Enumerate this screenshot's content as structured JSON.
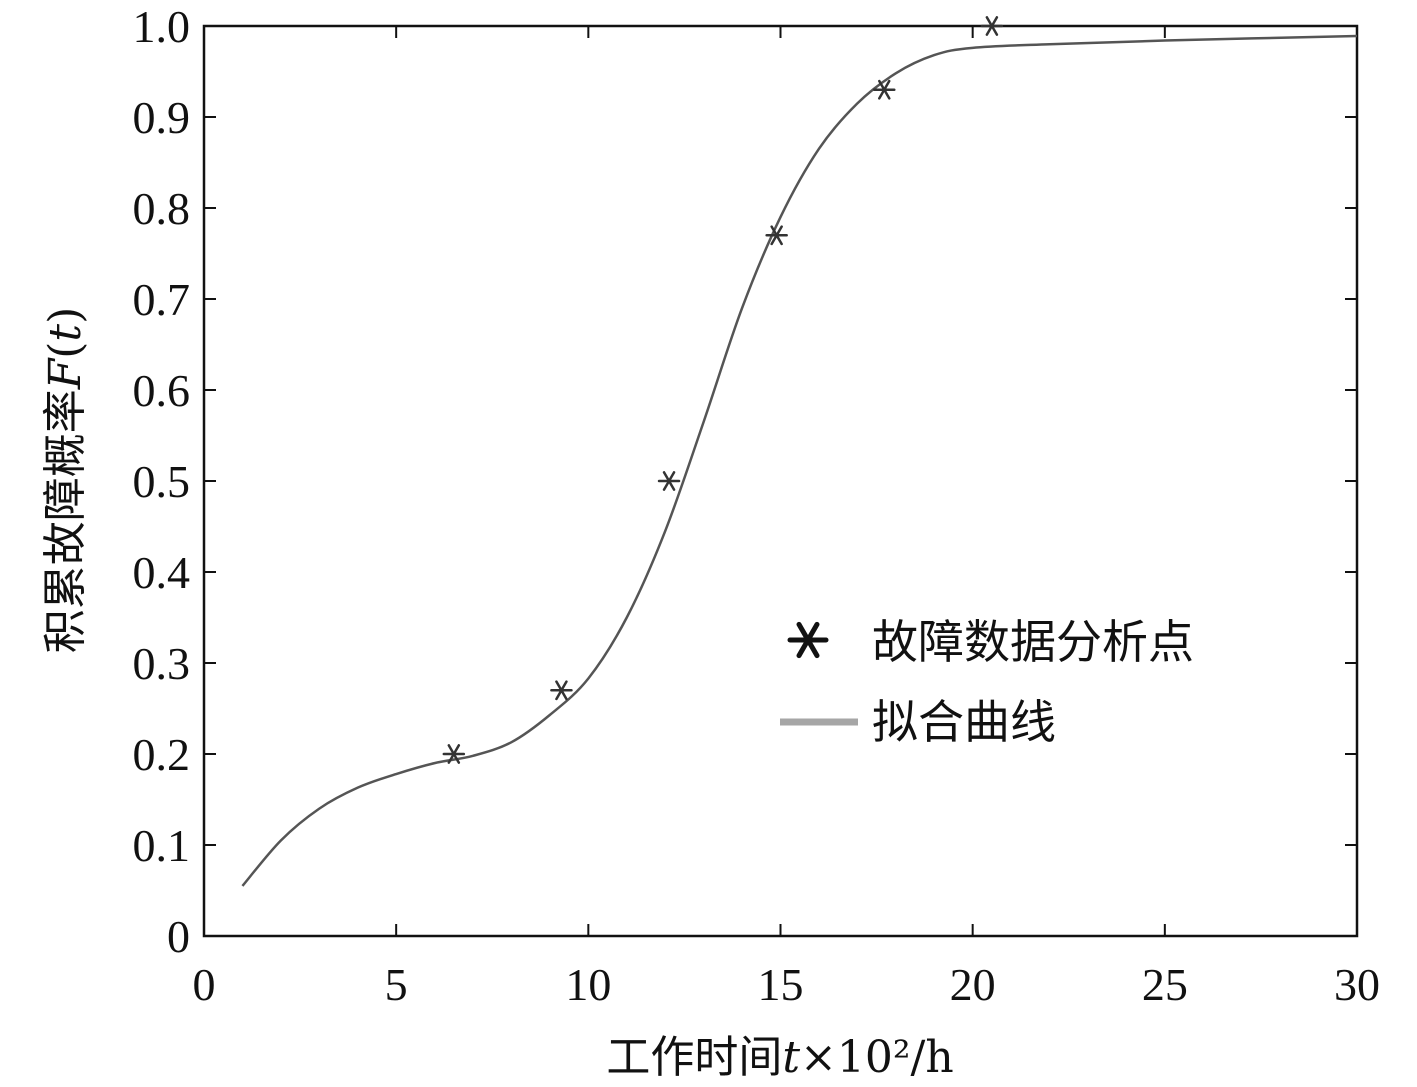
{
  "chart_data": {
    "type": "line",
    "xlabel": {
      "prefix": "工作时间",
      "var": "t",
      "suffix": "×10²/h"
    },
    "ylabel": {
      "prefix": "积累故障概率",
      "var": "F",
      "open": "(",
      "arg": "t",
      "close": ")"
    },
    "xlim": [
      0,
      30
    ],
    "ylim": [
      0,
      1.0
    ],
    "x_ticks": [
      0,
      5,
      10,
      15,
      20,
      25,
      30
    ],
    "x_tick_labels": [
      "0",
      "5",
      "10",
      "15",
      "20",
      "25",
      "30"
    ],
    "y_ticks": [
      0,
      0.1,
      0.2,
      0.3,
      0.4,
      0.5,
      0.6,
      0.7,
      0.8,
      0.9,
      1.0
    ],
    "y_tick_labels": [
      "0",
      "0.1",
      "0.2",
      "0.3",
      "0.4",
      "0.5",
      "0.6",
      "0.7",
      "0.8",
      "0.9",
      "1.0"
    ],
    "grid": false,
    "legend_position": "center-right",
    "series": [
      {
        "name": "故障数据分析点",
        "kind": "scatter",
        "marker": "asterisk",
        "color": "#333333",
        "x": [
          6.5,
          9.3,
          12.1,
          14.9,
          17.7,
          20.5
        ],
        "y": [
          0.2,
          0.27,
          0.5,
          0.77,
          0.93,
          1.0
        ]
      },
      {
        "name": "拟合曲线",
        "kind": "line",
        "color": "#555555",
        "legend_color": "#a6a6a6",
        "x": [
          1.0,
          2.0,
          3.0,
          4.0,
          5.0,
          6.0,
          7.0,
          8.0,
          9.0,
          10.0,
          11.0,
          12.0,
          13.0,
          14.0,
          15.0,
          16.0,
          17.0,
          18.0,
          19.0,
          20.0,
          22.0,
          25.0,
          30.0
        ],
        "y": [
          0.055,
          0.105,
          0.14,
          0.163,
          0.178,
          0.19,
          0.198,
          0.213,
          0.243,
          0.283,
          0.35,
          0.445,
          0.565,
          0.69,
          0.79,
          0.865,
          0.915,
          0.948,
          0.968,
          0.976,
          0.98,
          0.984,
          0.989
        ]
      }
    ]
  }
}
